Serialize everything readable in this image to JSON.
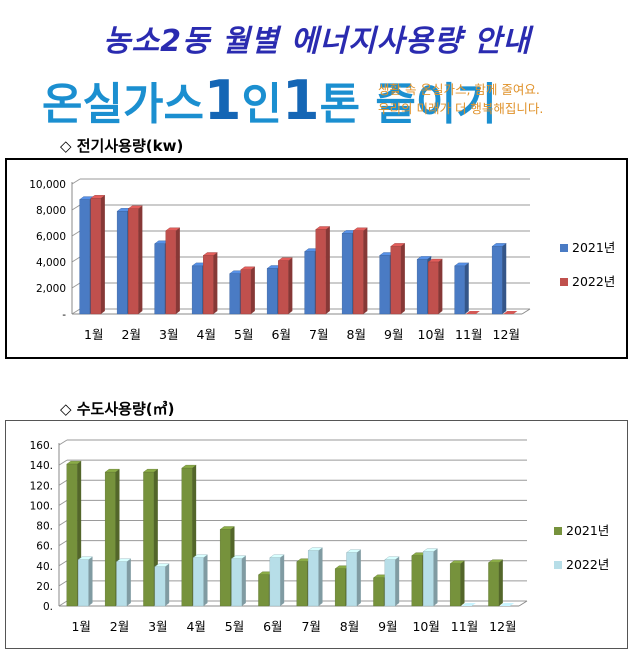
{
  "header": {
    "title": "농소2동 월별 에너지사용량 안내",
    "banner": {
      "part1": "온실가스",
      "one1": "1",
      "part2": "인",
      "one2": "1",
      "part3": "톤 줄이기"
    },
    "slogan_line1": "생활 속 온실가스, 함께 줄여요.",
    "slogan_line2": "우리의 미래가 더 행복해집니다."
  },
  "sections": {
    "electricity_title": "◇ 전기사용량(kw)",
    "water_title": "◇ 수도사용량(㎥)"
  },
  "colors": {
    "title": "#2a2bb0",
    "elec_2021": "#4a7bc4",
    "elec_2022": "#c0504d",
    "water_2021": "#76923c",
    "water_2022": "#b7dee8"
  },
  "chart_data": [
    {
      "type": "bar",
      "categories": [
        "1월",
        "2월",
        "3월",
        "4월",
        "5월",
        "6월",
        "7월",
        "8월",
        "9월",
        "10월",
        "11월",
        "12월"
      ],
      "y_tick_labels": [
        "-",
        "2,000",
        "4,000",
        "6,000",
        "8,000",
        "10,000"
      ],
      "ylim": [
        0,
        10000
      ],
      "grid": true,
      "legend_position": "right",
      "series": [
        {
          "name": "2021년",
          "values": [
            8800,
            7900,
            5400,
            3700,
            3100,
            3500,
            4800,
            6200,
            4500,
            4200,
            3700,
            5200
          ]
        },
        {
          "name": "2022년",
          "values": [
            8900,
            8100,
            6400,
            4500,
            3400,
            4100,
            6500,
            6400,
            5200,
            4000,
            0,
            0
          ]
        }
      ]
    },
    {
      "type": "bar",
      "categories": [
        "1월",
        "2월",
        "3월",
        "4월",
        "5월",
        "6월",
        "7월",
        "8월",
        "9월",
        "10월",
        "11월",
        "12월"
      ],
      "y_tick_labels": [
        "0.",
        "20.",
        "40.",
        "60.",
        "80.",
        "100.",
        "120.",
        "140.",
        "160."
      ],
      "ylim": [
        0,
        160
      ],
      "grid": true,
      "legend_position": "right",
      "series": [
        {
          "name": "2021년",
          "values": [
            141,
            133,
            133,
            137,
            76,
            31,
            44,
            37,
            28,
            50,
            42,
            43
          ]
        },
        {
          "name": "2022년",
          "values": [
            46,
            44,
            39,
            48,
            47,
            48,
            55,
            53,
            46,
            54,
            0,
            0
          ]
        }
      ]
    }
  ]
}
